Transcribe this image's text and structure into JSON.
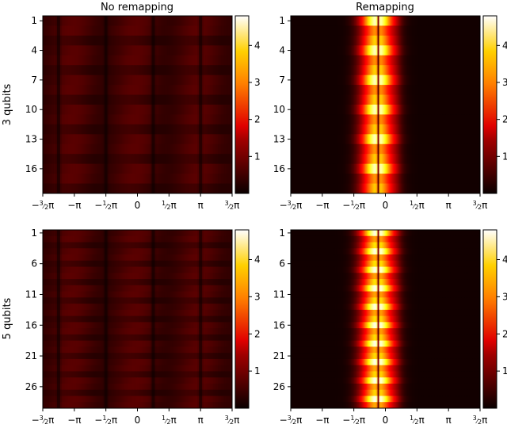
{
  "chart_data": {
    "type": "heatmap",
    "titles": {
      "no_remap": "No remapping",
      "remap": "Remapping"
    },
    "row_titles": [
      "3 qubits",
      "5 qubits"
    ],
    "x_ticks": [
      {
        "label_parts": [
          {
            "t": "−"
          },
          {
            "num": "3",
            "den": "2"
          },
          {
            "t": "π"
          }
        ]
      },
      {
        "label_parts": [
          {
            "t": "−π"
          }
        ]
      },
      {
        "label_parts": [
          {
            "t": "−"
          },
          {
            "num": "1",
            "den": "2"
          },
          {
            "t": "π"
          }
        ]
      },
      {
        "label_parts": [
          {
            "t": "0"
          }
        ]
      },
      {
        "label_parts": [
          {
            "num": "1",
            "den": "2"
          },
          {
            "t": "π"
          }
        ]
      },
      {
        "label_parts": [
          {
            "t": "π"
          }
        ]
      },
      {
        "label_parts": [
          {
            "num": "3",
            "den": "2"
          },
          {
            "t": "π"
          }
        ]
      }
    ],
    "x_range": [
      "-3/2 π",
      "3/2 π"
    ],
    "colormap": "hot",
    "colorbar_range": [
      0,
      4.8
    ],
    "colorbar_ticks": [
      "1",
      "2",
      "3",
      "4"
    ],
    "panels": [
      {
        "id": "p3-no-remap",
        "row": 0,
        "col": 0,
        "n_rows": 18,
        "y_tick_labels": [
          "1",
          "4",
          "7",
          "10",
          "13",
          "16"
        ],
        "mode": "no_remap",
        "dip_positions": [
          "-5/4 π",
          "-1/2 π",
          "1/4 π",
          "π"
        ],
        "max_value": 0.6
      },
      {
        "id": "p3-remap",
        "row": 0,
        "col": 1,
        "n_rows": 18,
        "y_tick_labels": [
          "1",
          "4",
          "7",
          "10",
          "13",
          "16"
        ],
        "mode": "remap",
        "peak_center": "-1/8 π",
        "peak_width": "1/4 π",
        "max_value": 4.6
      },
      {
        "id": "p5-no-remap",
        "row": 1,
        "col": 0,
        "n_rows": 29,
        "y_tick_labels": [
          "1",
          "6",
          "11",
          "16",
          "21",
          "26"
        ],
        "mode": "no_remap",
        "dip_positions": [
          "-5/4 π",
          "-1/2 π",
          "1/4 π",
          "π"
        ],
        "max_value": 0.6
      },
      {
        "id": "p5-remap",
        "row": 1,
        "col": 1,
        "n_rows": 29,
        "y_tick_labels": [
          "1",
          "6",
          "11",
          "16",
          "21",
          "26"
        ],
        "mode": "remap",
        "peak_center": "-1/8 π",
        "peak_width": "1/4 π",
        "max_value": 4.8
      }
    ]
  }
}
